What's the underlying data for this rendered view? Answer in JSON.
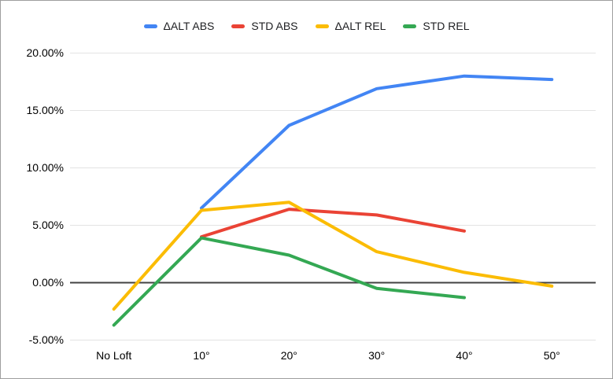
{
  "chart_data": {
    "type": "line",
    "title": "",
    "xlabel": "",
    "ylabel": "",
    "categories": [
      "No Loft",
      "10°",
      "20°",
      "30°",
      "40°",
      "50°"
    ],
    "series": [
      {
        "name": "ΔALT ABS",
        "color": "#4285F4",
        "values": [
          null,
          6.5,
          13.7,
          16.9,
          18.0,
          17.7
        ]
      },
      {
        "name": "STD ABS",
        "color": "#EA4335",
        "values": [
          null,
          4.0,
          6.4,
          5.9,
          4.5,
          null
        ]
      },
      {
        "name": "ΔALT REL",
        "color": "#FBBC04",
        "values": [
          -2.3,
          6.3,
          7.0,
          2.7,
          0.9,
          -0.3
        ]
      },
      {
        "name": "STD REL",
        "color": "#34A853",
        "values": [
          -3.7,
          3.9,
          2.4,
          -0.5,
          -1.3,
          null
        ]
      }
    ],
    "yticks": [
      "20.00%",
      "15.00%",
      "10.00%",
      "5.00%",
      "0.00%",
      "-5.00%"
    ],
    "ytick_values": [
      20,
      15,
      10,
      5,
      0,
      -5
    ],
    "ylim": [
      -5,
      20
    ],
    "grid": true,
    "legend_position": "top",
    "zero_axis_color": "#424242",
    "gridline_color": "#e3e3e3"
  }
}
